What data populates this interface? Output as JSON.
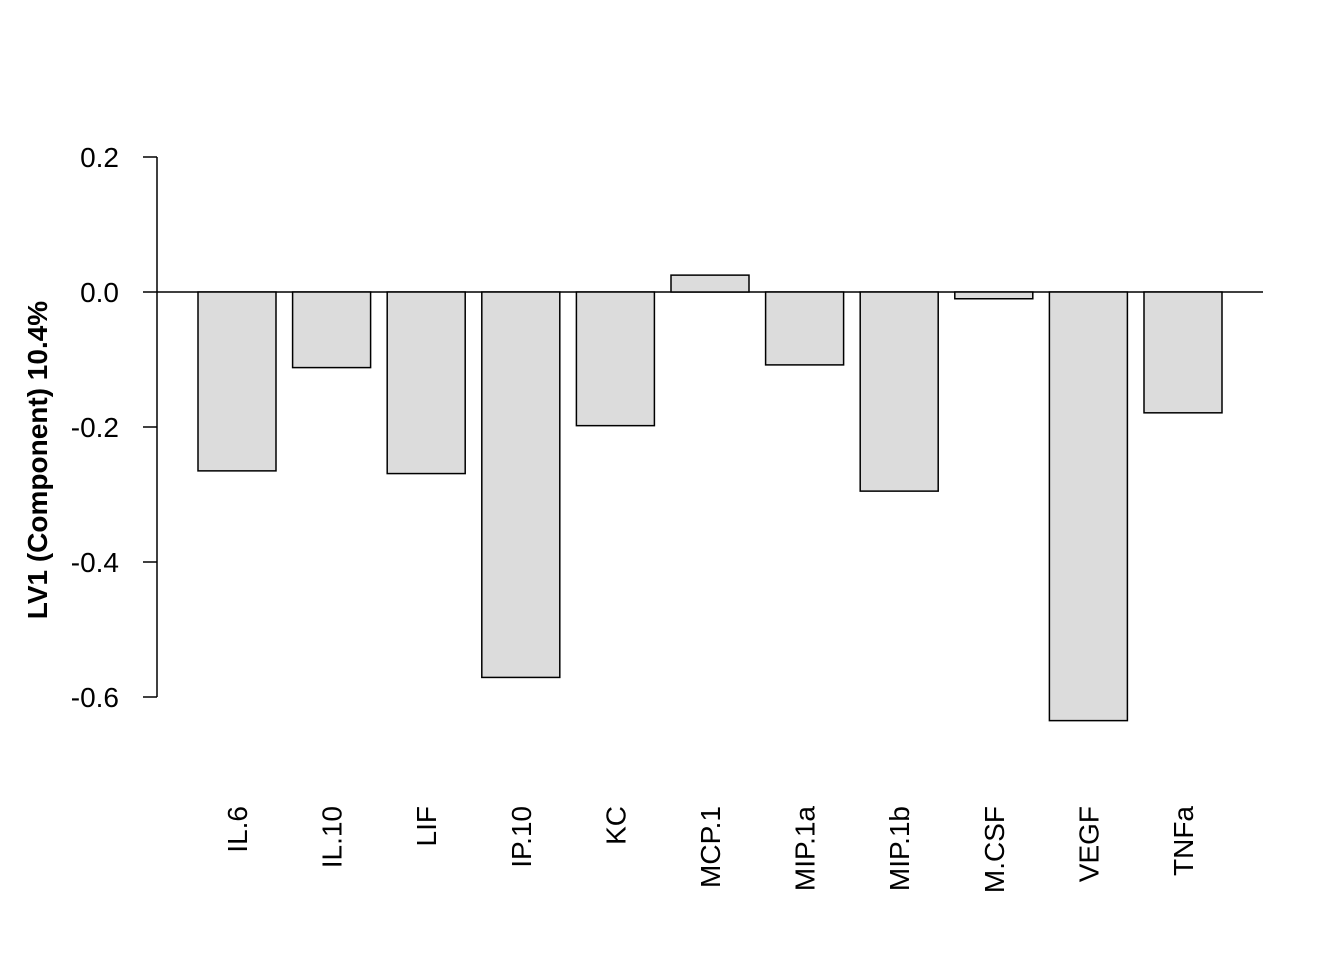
{
  "chart_data": {
    "type": "bar",
    "title": "",
    "xlabel": "",
    "ylabel": "LV1 (Component) 10.4%",
    "categories": [
      "IL.6",
      "IL.10",
      "LIF",
      "IP.10",
      "KC",
      "MCP.1",
      "MIP.1a",
      "MIP.1b",
      "M.CSF",
      "VEGF",
      "TNFa"
    ],
    "values": [
      -0.265,
      -0.112,
      -0.269,
      -0.571,
      -0.198,
      0.025,
      -0.108,
      -0.295,
      -0.01,
      -0.635,
      -0.179
    ],
    "yticks": [
      0.2,
      0.0,
      -0.2,
      -0.4,
      -0.6
    ],
    "ytick_labels": [
      "0.2",
      "0.0",
      "-0.2",
      "-0.4",
      "-0.6"
    ],
    "ylim": [
      -0.65,
      0.2
    ],
    "bar_color": "#dcdcdc",
    "grid": false,
    "legend": "none",
    "reference_line": 0
  }
}
